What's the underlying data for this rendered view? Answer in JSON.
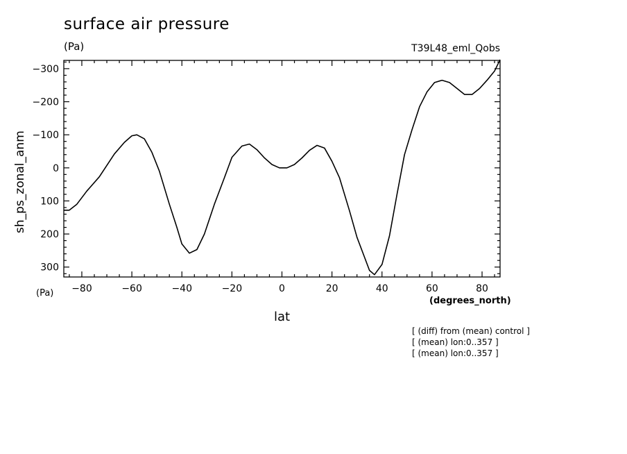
{
  "header": {
    "title": "surface air pressure",
    "units_top": "(Pa)",
    "run_name": "T39L48_eml_Qobs",
    "units_bottom": "(Pa)"
  },
  "notes": [
    "[ (diff) from (mean) control ]",
    "[ (mean) lon:0..357 ]",
    "[ (mean) lon:0..357 ]"
  ],
  "chart_data": {
    "type": "line",
    "title": "surface air pressure",
    "xlabel": "lat",
    "xunits": "(degrees_north)",
    "ylabel": "sh_ps_zonal_anm",
    "yunits": "(Pa)",
    "xlim": [
      -87.2,
      87.2
    ],
    "ylim": [
      320,
      -300
    ],
    "ylim_display": [
      330,
      -325
    ],
    "y_inverted": true,
    "xticks": [
      -80,
      -60,
      -40,
      -20,
      0,
      20,
      40,
      60,
      80
    ],
    "xtick_labels": [
      "−80",
      "−60",
      "−40",
      "−20",
      "0",
      "20",
      "40",
      "60",
      "80"
    ],
    "yticks": [
      -300,
      -200,
      -100,
      0,
      100,
      200,
      300
    ],
    "ytick_labels": [
      "−300",
      "−200",
      "−100",
      "0",
      "100",
      "200",
      "300"
    ],
    "grid": false,
    "series": [
      {
        "values_xy": [
          [
            -87.2,
            128
          ],
          [
            -85,
            128
          ],
          [
            -82,
            110
          ],
          [
            -78,
            70
          ],
          [
            -73,
            27
          ],
          [
            -67,
            -42
          ],
          [
            -63,
            -77
          ],
          [
            -60,
            -97
          ],
          [
            -58,
            -100
          ],
          [
            -55,
            -88
          ],
          [
            -52,
            -47
          ],
          [
            -49,
            10
          ],
          [
            -45,
            110
          ],
          [
            -42,
            180
          ],
          [
            -40,
            230
          ],
          [
            -37,
            258
          ],
          [
            -34,
            247
          ],
          [
            -31,
            200
          ],
          [
            -27,
            110
          ],
          [
            -23,
            30
          ],
          [
            -20,
            -32
          ],
          [
            -16,
            -66
          ],
          [
            -13,
            -72
          ],
          [
            -10,
            -55
          ],
          [
            -7,
            -30
          ],
          [
            -4,
            -10
          ],
          [
            -1,
            0
          ],
          [
            2,
            0
          ],
          [
            5,
            -10
          ],
          [
            8,
            -30
          ],
          [
            11,
            -53
          ],
          [
            14,
            -68
          ],
          [
            17,
            -60
          ],
          [
            20,
            -20
          ],
          [
            23,
            30
          ],
          [
            27,
            130
          ],
          [
            30,
            210
          ],
          [
            33,
            270
          ],
          [
            35,
            310
          ],
          [
            37,
            323
          ],
          [
            40,
            292
          ],
          [
            43,
            205
          ],
          [
            46,
            80
          ],
          [
            49,
            -40
          ],
          [
            52,
            -115
          ],
          [
            55,
            -185
          ],
          [
            58,
            -230
          ],
          [
            61,
            -258
          ],
          [
            64,
            -265
          ],
          [
            67,
            -258
          ],
          [
            70,
            -240
          ],
          [
            73,
            -222
          ],
          [
            76,
            -222
          ],
          [
            79,
            -240
          ],
          [
            82,
            -265
          ],
          [
            85,
            -293
          ],
          [
            87.2,
            -327
          ]
        ]
      }
    ]
  }
}
